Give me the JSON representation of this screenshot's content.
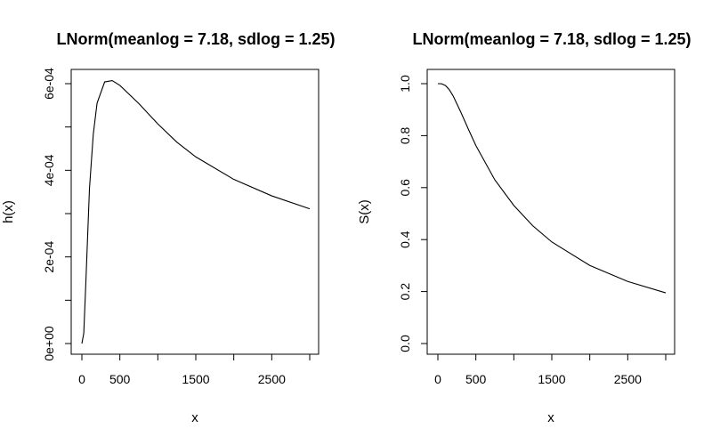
{
  "chart_data": [
    {
      "type": "line",
      "title": "LNorm(meanlog = 7.18, sdlog = 1.25)",
      "xlabel": "x",
      "ylabel": "h(x)",
      "xlim": [
        0,
        3000
      ],
      "ylim": [
        0,
        0.00062
      ],
      "x_ticks": [
        0,
        500,
        1000,
        1500,
        2000,
        2500,
        3000
      ],
      "x_tick_labels": [
        "0",
        "500",
        "",
        "1500",
        "",
        "2500",
        ""
      ],
      "y_ticks": [
        0,
        0.0001,
        0.0002,
        0.0003,
        0.0004,
        0.0005,
        0.0006
      ],
      "y_tick_labels": [
        "0e+00",
        "",
        "2e-04",
        "",
        "4e-04",
        "",
        "6e-04"
      ],
      "grid": false,
      "series": [
        {
          "x": [
            0,
            25,
            50,
            100,
            150,
            200,
            300,
            400,
            500,
            750,
            1000,
            1250,
            1500,
            2000,
            2500,
            3000
          ],
          "values": [
            0.0,
            2.38e-05,
            0.000131,
            0.000358,
            0.000483,
            0.000555,
            0.000604,
            0.000607,
            0.000596,
            0.000554,
            0.000507,
            0.000465,
            0.000431,
            0.000379,
            0.000341,
            0.000311
          ]
        }
      ]
    },
    {
      "type": "line",
      "title": "LNorm(meanlog = 7.18, sdlog = 1.25)",
      "xlabel": "x",
      "ylabel": "S(x)",
      "xlim": [
        0,
        3000
      ],
      "ylim": [
        0,
        1
      ],
      "x_ticks": [
        0,
        500,
        1000,
        1500,
        2000,
        2500,
        3000
      ],
      "x_tick_labels": [
        "0",
        "500",
        "",
        "1500",
        "",
        "2500",
        ""
      ],
      "y_ticks": [
        0,
        0.2,
        0.4,
        0.6,
        0.8,
        1.0
      ],
      "y_tick_labels": [
        "0.0",
        "0.2",
        "0.4",
        "0.6",
        "0.8",
        "1.0"
      ],
      "grid": false,
      "series": [
        {
          "x": [
            0,
            25,
            50,
            100,
            150,
            200,
            300,
            400,
            500,
            750,
            1000,
            1250,
            1500,
            2000,
            2500,
            3000
          ],
          "values": [
            1.0,
            0.99995,
            0.9995,
            0.9929,
            0.9769,
            0.9531,
            0.8918,
            0.8257,
            0.7621,
            0.6297,
            0.5313,
            0.4529,
            0.3909,
            0.3007,
            0.2389,
            0.195
          ]
        }
      ]
    }
  ]
}
